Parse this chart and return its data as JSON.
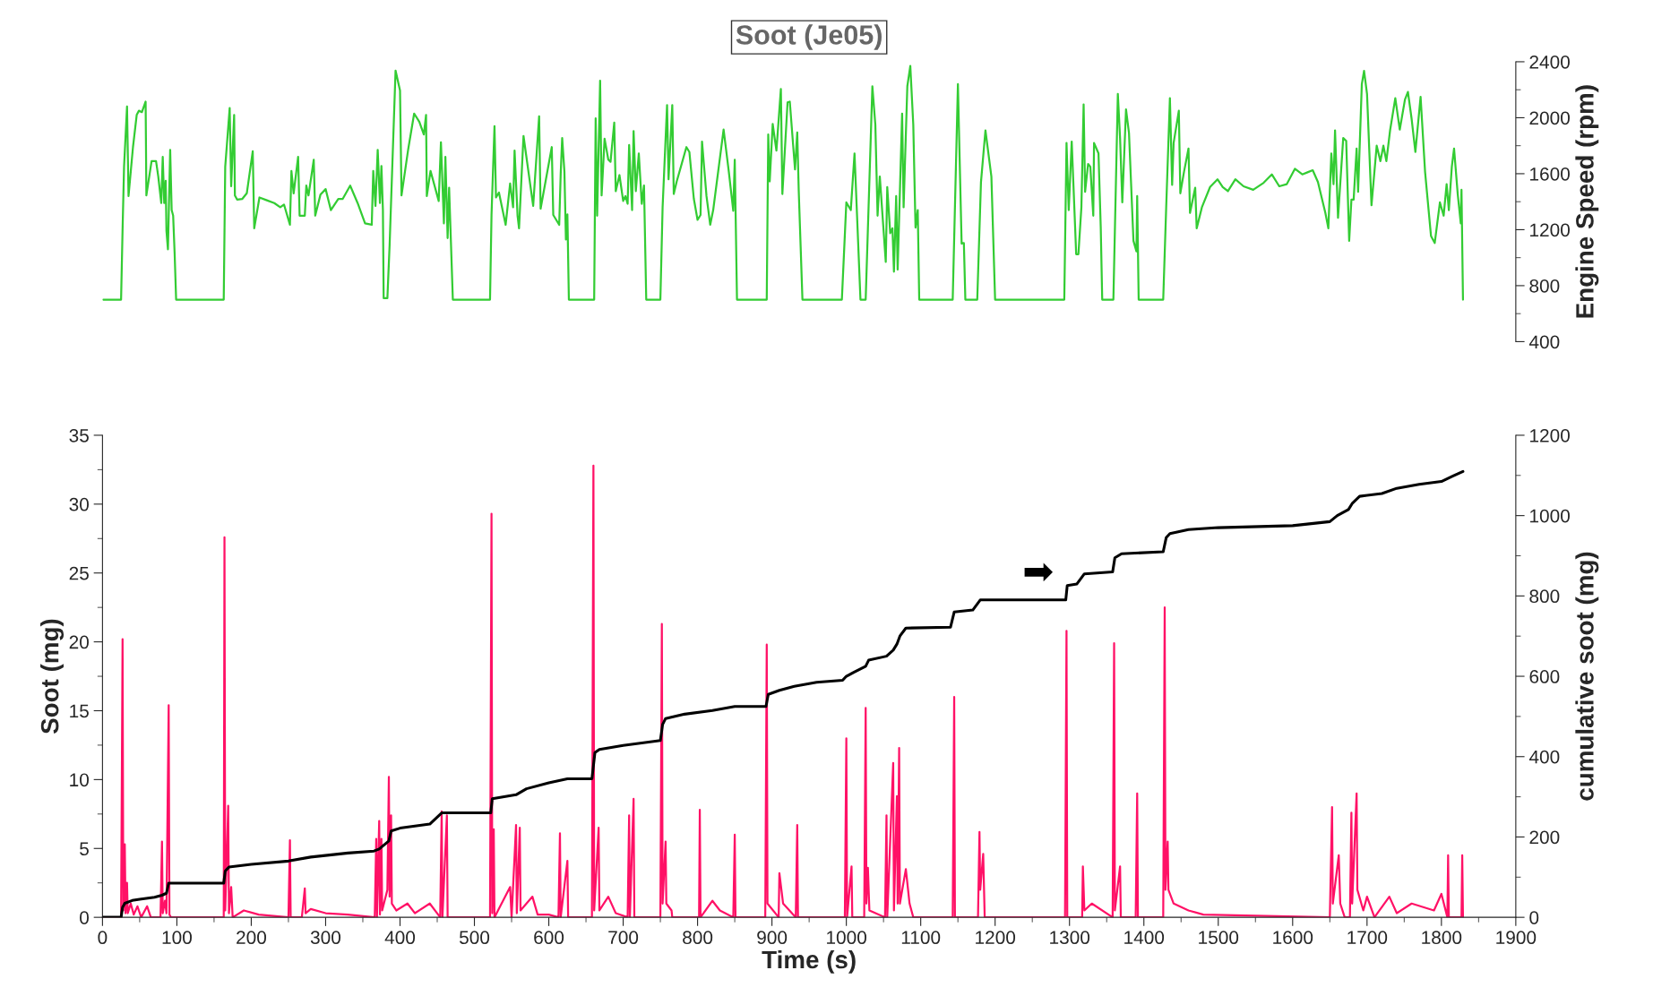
{
  "chart_data": [
    {
      "type": "line",
      "title": "Soot (Je05)",
      "ylabel": "Engine Speed (rpm)",
      "xlim": [
        0,
        1900
      ],
      "ylim": [
        400,
        2400
      ],
      "yticks": [
        400,
        {
          "value": 600,
          "label": null
        },
        800,
        {
          "value": 1000,
          "label": null
        },
        1200,
        {
          "value": 1400,
          "label": null
        },
        1600,
        {
          "value": 1800,
          "label": null
        },
        2000,
        {
          "value": 2200,
          "label": null
        },
        2400
      ],
      "tick_labels": "y",
      "grid": false,
      "series": [
        {
          "color": "#33cc33",
          "x": [
            1,
            25,
            27,
            29,
            33,
            35,
            41,
            46,
            49,
            53,
            58,
            59,
            66,
            72,
            75,
            79,
            81,
            83,
            85,
            86,
            88,
            91,
            93,
            95,
            97,
            99,
            163,
            165,
            171,
            173,
            177,
            178,
            181,
            188,
            194,
            202,
            204,
            211,
            221,
            231,
            239,
            244,
            252,
            254,
            257,
            263,
            265,
            272,
            274,
            277,
            284,
            286,
            293,
            300,
            307,
            317,
            323,
            333,
            343,
            353,
            362,
            364,
            367,
            370,
            373,
            375,
            377,
            378,
            383,
            386,
            394,
            400,
            402,
            411,
            419,
            426,
            432,
            435,
            436,
            441,
            452,
            455,
            459,
            461,
            464,
            466,
            471,
            521,
            523,
            527,
            529,
            533,
            542,
            548,
            552,
            554,
            558,
            560,
            566,
            579,
            587,
            589,
            604,
            606,
            614,
            616,
            618,
            621,
            623,
            625,
            627,
            661,
            663,
            665,
            669,
            671,
            675,
            680,
            683,
            688,
            690,
            695,
            700,
            703,
            706,
            708,
            712,
            714,
            717,
            721,
            725,
            728,
            731,
            750,
            753,
            759,
            761,
            766,
            768,
            772,
            785,
            789,
            795,
            800,
            804,
            806,
            812,
            817,
            821,
            835,
            842,
            848,
            850,
            853,
            893,
            895,
            897,
            901,
            906,
            912,
            914,
            921,
            924,
            931,
            934,
            936,
            941,
            994,
            1000,
            1006,
            1011,
            1019,
            1026,
            1035,
            1039,
            1042,
            1045,
            1053,
            1055,
            1059,
            1062,
            1064,
            1067,
            1069,
            1075,
            1077,
            1082,
            1086,
            1090,
            1093,
            1096,
            1098,
            1143,
            1150,
            1155,
            1158,
            1160,
            1176,
            1181,
            1187,
            1195,
            1200,
            1293,
            1296,
            1299,
            1303,
            1309,
            1312,
            1316,
            1319,
            1321,
            1325,
            1328,
            1332,
            1333,
            1339,
            1342,
            1344,
            1359,
            1365,
            1368,
            1371,
            1376,
            1380,
            1386,
            1390,
            1391,
            1393,
            1426,
            1430,
            1435,
            1438,
            1440,
            1447,
            1449,
            1454,
            1460,
            1462,
            1469,
            1471,
            1478,
            1489,
            1499,
            1506,
            1513,
            1523,
            1534,
            1547,
            1561,
            1572,
            1582,
            1592,
            1603,
            1613,
            1620,
            1627,
            1634,
            1644,
            1648,
            1652,
            1655,
            1657,
            1661,
            1668,
            1672,
            1676,
            1679,
            1682,
            1686,
            1688,
            1693,
            1696,
            1700,
            1706,
            1713,
            1718,
            1722,
            1726,
            1731,
            1738,
            1744,
            1751,
            1755,
            1760,
            1765,
            1772,
            1778,
            1786,
            1791,
            1798,
            1803,
            1807,
            1810,
            1814,
            1817,
            1822,
            1826,
            1827,
            1829
          ],
          "values": [
            700,
            700,
            1200,
            1650,
            2080,
            1440,
            1790,
            2020,
            2050,
            2040,
            2115,
            1445,
            1690,
            1690,
            1580,
            1390,
            1720,
            1390,
            1550,
            1190,
            1060,
            1770,
            1340,
            1300,
            1030,
            700,
            700,
            1650,
            2070,
            1510,
            2020,
            1445,
            1415,
            1420,
            1460,
            1760,
            1210,
            1430,
            1410,
            1390,
            1360,
            1380,
            1235,
            1620,
            1460,
            1720,
            1300,
            1300,
            1515,
            1445,
            1700,
            1300,
            1450,
            1490,
            1340,
            1420,
            1420,
            1515,
            1390,
            1245,
            1235,
            1620,
            1370,
            1770,
            1390,
            1655,
            1340,
            710,
            710,
            1090,
            2337,
            2195,
            1445,
            1775,
            2030,
            1970,
            1880,
            2020,
            1440,
            1620,
            1405,
            1825,
            1245,
            1720,
            1140,
            1500,
            700,
            700,
            1305,
            1940,
            1430,
            1465,
            1235,
            1530,
            1360,
            1765,
            1300,
            1210,
            1870,
            1370,
            2010,
            1350,
            1790,
            1305,
            1235,
            1600,
            1855,
            1615,
            1130,
            1310,
            700,
            700,
            1995,
            1300,
            2265,
            1445,
            1850,
            1700,
            1685,
            1965,
            1475,
            1590,
            1405,
            1440,
            1385,
            1805,
            1340,
            1905,
            1475,
            1745,
            1385,
            1515,
            700,
            700,
            1360,
            2090,
            1560,
            2090,
            1455,
            1545,
            1790,
            1755,
            1420,
            1270,
            1305,
            1830,
            1440,
            1235,
            1340,
            1915,
            1615,
            1335,
            1700,
            700,
            700,
            1880,
            1545,
            1955,
            1765,
            2205,
            1455,
            2110,
            2115,
            1630,
            1895,
            1480,
            700,
            700,
            1395,
            1340,
            1745,
            700,
            700,
            2225,
            1950,
            1300,
            1580,
            970,
            1505,
            1175,
            1210,
            900,
            1440,
            915,
            2030,
            1360,
            2225,
            2370,
            1950,
            1215,
            1340,
            700,
            700,
            2240,
            1100,
            1105,
            700,
            700,
            1540,
            1910,
            1580,
            700,
            700,
            1820,
            1340,
            1830,
            1025,
            1025,
            1360,
            2095,
            1470,
            1670,
            1650,
            1300,
            1820,
            1745,
            1220,
            700,
            700,
            2170,
            1855,
            1395,
            2060,
            1890,
            1120,
            1045,
            1440,
            700,
            700,
            1360,
            2140,
            1520,
            1820,
            2050,
            1460,
            1615,
            1780,
            1320,
            1500,
            1210,
            1360,
            1505,
            1560,
            1505,
            1475,
            1560,
            1510,
            1485,
            1535,
            1595,
            1510,
            1525,
            1635,
            1595,
            1610,
            1625,
            1540,
            1320,
            1210,
            1745,
            1525,
            1910,
            1285,
            1855,
            1835,
            1120,
            1415,
            1415,
            1780,
            1470,
            2240,
            2335,
            2170,
            1375,
            1800,
            1690,
            1800,
            1690,
            1910,
            2140,
            1915,
            2130,
            2185,
            1990,
            1755,
            2150,
            1615,
            1155,
            1105,
            1395,
            1300,
            1525,
            1340,
            1650,
            1780,
            1450,
            1245,
            1485,
            700
          ]
        }
      ]
    },
    {
      "type": "line",
      "xlabel": "Time (s)",
      "ylabel": "Soot (mg)",
      "y2label": "cumulative soot (mg)",
      "xlim": [
        0,
        1900
      ],
      "xticks": [
        0,
        {
          "value": 50,
          "label": null
        },
        100,
        {
          "value": 150,
          "label": null
        },
        200,
        {
          "value": 250,
          "label": null
        },
        300,
        {
          "value": 350,
          "label": null
        },
        400,
        {
          "value": 450,
          "label": null
        },
        500,
        {
          "value": 550,
          "label": null
        },
        600,
        {
          "value": 650,
          "label": null
        },
        700,
        {
          "value": 750,
          "label": null
        },
        800,
        {
          "value": 850,
          "label": null
        },
        900,
        {
          "value": 950,
          "label": null
        },
        1000,
        {
          "value": 1050,
          "label": null
        },
        1100,
        {
          "value": 1150,
          "label": null
        },
        1200,
        {
          "value": 1250,
          "label": null
        },
        1300,
        {
          "value": 1350,
          "label": null
        },
        1400,
        {
          "value": 1450,
          "label": null
        },
        1500,
        {
          "value": 1550,
          "label": null
        },
        1600,
        {
          "value": 1650,
          "label": null
        },
        1700,
        {
          "value": 1750,
          "label": null
        },
        1800,
        {
          "value": 1850,
          "label": null
        },
        1900
      ],
      "ylim": [
        0,
        35
      ],
      "yticks": [
        0,
        {
          "value": 2.5,
          "label": null
        },
        5,
        {
          "value": 7.5,
          "label": null
        },
        10,
        {
          "value": 12.5,
          "label": null
        },
        15,
        {
          "value": 17.5,
          "label": null
        },
        20,
        {
          "value": 22.5,
          "label": null
        },
        25,
        {
          "value": 27.5,
          "label": null
        },
        30,
        {
          "value": 32.5,
          "label": null
        },
        35
      ],
      "y2lim": [
        0,
        1200
      ],
      "y2ticks": [
        0,
        {
          "value": 100,
          "label": null
        },
        200,
        {
          "value": 300,
          "label": null
        },
        400,
        {
          "value": 500,
          "label": null
        },
        600,
        {
          "value": 700,
          "label": null
        },
        800,
        {
          "value": 900,
          "label": null
        },
        1000,
        {
          "value": 1100,
          "label": null
        },
        1200
      ],
      "grid": false,
      "annotations": [
        "➡"
      ],
      "series": [
        {
          "color": "#ff1166",
          "x": [
            0,
            25,
            27,
            28,
            30,
            31,
            33,
            34,
            38,
            42,
            47,
            52,
            60,
            65,
            78,
            80,
            81,
            84,
            86,
            89,
            90,
            92,
            163,
            164,
            165,
            169,
            170,
            173,
            175,
            190,
            210,
            250,
            252,
            253,
            268,
            272,
            273,
            280,
            300,
            330,
            366,
            368,
            369,
            372,
            373,
            375,
            376,
            383,
            385,
            386,
            388,
            389,
            395,
            410,
            420,
            440,
            454,
            456,
            457,
            463,
            464,
            521,
            523,
            524,
            526,
            527,
            548,
            550,
            556,
            557,
            561,
            562,
            578,
            585,
            600,
            613,
            615,
            616,
            625,
            626,
            658,
            660,
            661,
            667,
            668,
            680,
            690,
            706,
            708,
            709,
            714,
            715,
            750,
            752,
            753,
            757,
            758,
            765,
            766,
            802,
            803,
            804,
            820,
            830,
            848,
            850,
            851,
            891,
            893,
            894,
            909,
            910,
            915,
            932,
            934,
            935,
            998,
            1000,
            1001,
            1007,
            1008,
            1024,
            1026,
            1027,
            1029,
            1031,
            1052,
            1054,
            1055,
            1063,
            1064,
            1068,
            1069,
            1071,
            1072,
            1080,
            1085,
            1090,
            1143,
            1145,
            1146,
            1177,
            1179,
            1180,
            1184,
            1186,
            1294,
            1296,
            1297,
            1317,
            1318,
            1320,
            1330,
            1358,
            1360,
            1361,
            1368,
            1369,
            1389,
            1391,
            1392,
            1426,
            1428,
            1429,
            1432,
            1433,
            1440,
            1460,
            1480,
            1650,
            1653,
            1654,
            1662,
            1664,
            1670,
            1677,
            1679,
            1680,
            1686,
            1687,
            1695,
            1700,
            1710,
            1730,
            1740,
            1760,
            1790,
            1800,
            1808,
            1809,
            1810,
            1827,
            1828,
            1829
          ],
          "values": [
            0,
            0,
            20.2,
            0.5,
            5.3,
            0.3,
            2.5,
            0.3,
            1.0,
            0.2,
            0.8,
            0,
            0.8,
            0,
            0,
            5.5,
            0.3,
            1.2,
            0.3,
            15.4,
            0.2,
            0,
            0,
            27.6,
            0.5,
            8.1,
            0.3,
            2.2,
            0,
            0.5,
            0.2,
            0,
            5.6,
            0,
            0,
            2.1,
            0.3,
            0.6,
            0.3,
            0.2,
            0,
            5.7,
            0,
            7.0,
            0.2,
            5.7,
            0.5,
            2,
            10.2,
            1.5,
            7.4,
            1,
            0.5,
            1.0,
            0.3,
            1.0,
            0,
            7.7,
            0,
            7.4,
            0,
            0,
            29.3,
            0.3,
            6.4,
            0,
            2.2,
            0,
            6.7,
            0.3,
            6.5,
            0.5,
            1.5,
            0.2,
            0.2,
            0,
            6.1,
            0,
            4.1,
            0,
            0,
            32.8,
            0.5,
            6.5,
            0.5,
            1.5,
            0.3,
            0,
            7.4,
            0,
            8.6,
            0,
            0,
            21.3,
            1,
            5.5,
            1,
            0.5,
            0,
            0,
            7.8,
            0,
            1.2,
            0.5,
            0,
            6.0,
            0,
            0,
            19.8,
            1,
            0,
            3.2,
            1,
            0,
            6.7,
            0,
            0,
            13.0,
            0,
            3.7,
            0,
            0,
            15.2,
            1,
            3.6,
            0.5,
            0,
            7.4,
            0,
            11.2,
            0.5,
            8.8,
            1,
            12.3,
            1,
            3.5,
            1,
            0,
            0,
            16.0,
            0,
            0,
            6.2,
            2,
            4.6,
            0,
            0,
            20.8,
            0,
            0,
            3.7,
            0.5,
            1,
            0,
            19.9,
            0.5,
            3.7,
            0,
            0,
            9.0,
            0,
            0,
            22.5,
            2,
            5.5,
            2,
            1.0,
            0.5,
            0.2,
            0,
            8.0,
            1,
            4.5,
            1,
            0,
            0,
            7.6,
            1,
            9.0,
            2,
            0.5,
            1.5,
            0,
            1.5,
            0.3,
            1,
            0.5,
            1.7,
            0,
            4.5,
            0,
            0,
            4.5,
            0
          ]
        },
        {
          "color": "#000000",
          "axis": "y2",
          "x": [
            0,
            25,
            27,
            30,
            40,
            50,
            70,
            80,
            86,
            89,
            163,
            165,
            170,
            200,
            250,
            280,
            330,
            365,
            372,
            385,
            388,
            400,
            440,
            456,
            522,
            524,
            556,
            570,
            600,
            625,
            658,
            662,
            668,
            700,
            750,
            753,
            757,
            780,
            820,
            850,
            892,
            895,
            910,
            930,
            960,
            995,
            1000,
            1010,
            1026,
            1030,
            1054,
            1063,
            1068,
            1072,
            1080,
            1140,
            1145,
            1170,
            1180,
            1295,
            1297,
            1310,
            1320,
            1358,
            1361,
            1370,
            1426,
            1430,
            1435,
            1460,
            1500,
            1600,
            1650,
            1660,
            1675,
            1680,
            1690,
            1720,
            1740,
            1770,
            1800,
            1815,
            1829
          ],
          "values": [
            0,
            0,
            25,
            35,
            42,
            45,
            50,
            55,
            60,
            85,
            85,
            115,
            125,
            132,
            140,
            150,
            160,
            165,
            170,
            190,
            215,
            222,
            232,
            260,
            260,
            295,
            305,
            320,
            335,
            345,
            345,
            410,
            418,
            428,
            440,
            480,
            495,
            505,
            515,
            525,
            525,
            555,
            565,
            575,
            585,
            590,
            600,
            610,
            625,
            640,
            650,
            665,
            680,
            700,
            720,
            722,
            760,
            765,
            790,
            790,
            826,
            830,
            855,
            860,
            895,
            905,
            910,
            945,
            955,
            965,
            970,
            975,
            985,
            1000,
            1015,
            1030,
            1048,
            1055,
            1068,
            1078,
            1085,
            1098,
            1110
          ]
        }
      ]
    }
  ]
}
